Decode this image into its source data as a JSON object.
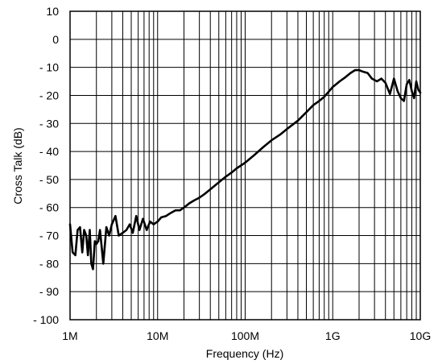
{
  "chart_data": {
    "type": "line",
    "title": "",
    "xlabel": "Frequency (Hz)",
    "ylabel": "Cross Talk (dB)",
    "x_scale": "log",
    "xlim": [
      1000000,
      10000000000
    ],
    "ylim": [
      -100,
      10
    ],
    "grid": true,
    "x_tick_values": [
      1000000,
      10000000,
      100000000,
      1000000000,
      10000000000
    ],
    "x_tick_labels": [
      "1M",
      "10M",
      "100M",
      "1G",
      "10G"
    ],
    "y_tick_values": [
      10,
      0,
      -10,
      -20,
      -30,
      -40,
      -50,
      -60,
      -70,
      -80,
      -90,
      -100
    ],
    "y_tick_labels": [
      "10",
      "0",
      "- 10",
      "- 20",
      "- 30",
      "- 40",
      "- 50",
      "- 60",
      "- 70",
      "- 80",
      "- 90",
      "- 100"
    ],
    "series": [
      {
        "x": [
          1000000,
          1070000,
          1150000,
          1220000,
          1300000,
          1380000,
          1450000,
          1530000,
          1600000,
          1680000,
          1750000,
          1830000,
          1920000,
          2000000,
          2100000,
          2200000,
          2400000,
          2600000,
          2800000,
          3000000,
          3300000,
          3600000,
          4000000,
          4400000,
          4800000,
          5200000,
          5700000,
          6200000,
          6800000,
          7500000,
          8200000,
          9000000,
          10000000,
          11000000,
          12500000,
          14000000,
          16000000,
          18000000,
          20000000,
          23000000,
          26000000,
          30000000,
          35000000,
          40000000,
          50000000,
          60000000,
          70000000,
          80000000,
          100000000,
          130000000,
          160000000,
          200000000,
          250000000,
          300000000,
          400000000,
          500000000,
          600000000,
          700000000,
          800000000,
          1000000000,
          1200000000,
          1400000000,
          1600000000,
          1800000000,
          2000000000,
          2200000000,
          2500000000,
          2800000000,
          3200000000,
          3600000000,
          4000000000,
          4500000000,
          5000000000,
          5500000000,
          6000000000,
          6500000000,
          7000000000,
          7500000000,
          8000000000,
          8500000000,
          9000000000,
          9500000000,
          10000000000
        ],
        "y": [
          -66,
          -76,
          -77,
          -68,
          -67,
          -76,
          -68,
          -70,
          -77,
          -68,
          -80,
          -82,
          -72,
          -73,
          -72,
          -68,
          -80,
          -67,
          -70,
          -66,
          -63,
          -70,
          -69,
          -68,
          -66,
          -69,
          -63,
          -68,
          -64,
          -68,
          -65,
          -66,
          -65,
          -63.5,
          -63,
          -62,
          -61,
          -61,
          -60,
          -58.5,
          -57.5,
          -56.5,
          -55,
          -53.5,
          -51,
          -49,
          -47.5,
          -46,
          -44,
          -41,
          -38.5,
          -36,
          -34,
          -32,
          -29,
          -26,
          -23.5,
          -22,
          -20.5,
          -17,
          -15,
          -13.5,
          -12,
          -11,
          -11,
          -11.5,
          -12,
          -14,
          -15,
          -14,
          -15.5,
          -19.5,
          -14,
          -18.5,
          -21,
          -22,
          -16,
          -14.5,
          -18.5,
          -21,
          -15,
          -18,
          -19
        ]
      }
    ]
  }
}
